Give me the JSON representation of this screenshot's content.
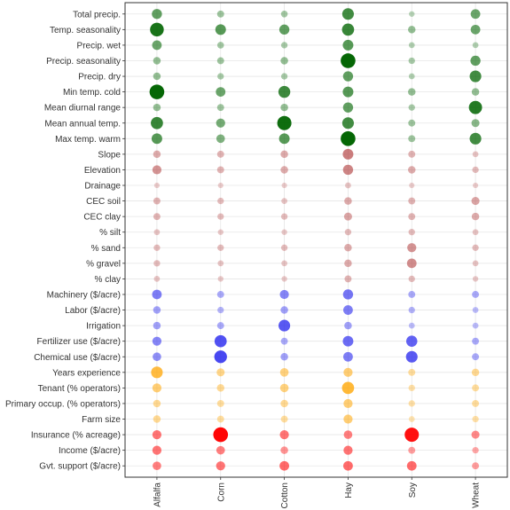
{
  "chart_data": {
    "type": "scatter",
    "title": "",
    "xlabel": "",
    "ylabel": "",
    "grid": true,
    "legend": "none",
    "x_categories": [
      "Alfalfa",
      "Corn",
      "Cotton",
      "Hay",
      "Soy",
      "Wheat"
    ],
    "groups": {
      "climate": {
        "color": "#006400"
      },
      "soil": {
        "color": "#b03a3a"
      },
      "cost": {
        "color": "#2020ee"
      },
      "farmer": {
        "color": "#ffa500"
      },
      "policy": {
        "color": "#ff0000"
      }
    },
    "variables": [
      {
        "label": "Total precip.",
        "group": "climate",
        "values": [
          0.55,
          0.25,
          0.22,
          0.7,
          0.12,
          0.5
        ]
      },
      {
        "label": "Temp. seasonality",
        "group": "climate",
        "values": [
          0.9,
          0.6,
          0.55,
          0.75,
          0.3,
          0.5
        ]
      },
      {
        "label": "Precip. wet",
        "group": "climate",
        "values": [
          0.5,
          0.22,
          0.2,
          0.6,
          0.15,
          0.15
        ]
      },
      {
        "label": "Precip. seasonality",
        "group": "climate",
        "values": [
          0.3,
          0.25,
          0.3,
          1.0,
          0.2,
          0.55
        ]
      },
      {
        "label": "Precip. dry",
        "group": "climate",
        "values": [
          0.3,
          0.2,
          0.2,
          0.55,
          0.15,
          0.7
        ]
      },
      {
        "label": "Min temp. cold",
        "group": "climate",
        "values": [
          1.0,
          0.5,
          0.72,
          0.6,
          0.3,
          0.3
        ]
      },
      {
        "label": "Mean diurnal range",
        "group": "climate",
        "values": [
          0.3,
          0.25,
          0.3,
          0.55,
          0.2,
          0.85
        ]
      },
      {
        "label": "Mean annual temp.",
        "group": "climate",
        "values": [
          0.75,
          0.45,
          0.95,
          0.7,
          0.25,
          0.35
        ]
      },
      {
        "label": "Max temp. warm",
        "group": "climate",
        "values": [
          0.6,
          0.4,
          0.6,
          1.0,
          0.25,
          0.7
        ]
      },
      {
        "label": "Slope",
        "group": "soil",
        "values": [
          0.3,
          0.25,
          0.3,
          0.6,
          0.25,
          0.15
        ]
      },
      {
        "label": "Elevation",
        "group": "soil",
        "values": [
          0.45,
          0.25,
          0.3,
          0.55,
          0.3,
          0.2
        ]
      },
      {
        "label": "Drainage",
        "group": "soil",
        "values": [
          0.1,
          0.1,
          0.1,
          0.15,
          0.1,
          0.1
        ]
      },
      {
        "label": "CEC soil",
        "group": "soil",
        "values": [
          0.25,
          0.2,
          0.15,
          0.3,
          0.25,
          0.35
        ]
      },
      {
        "label": "CEC clay",
        "group": "soil",
        "values": [
          0.25,
          0.2,
          0.2,
          0.35,
          0.25,
          0.3
        ]
      },
      {
        "label": "% silt",
        "group": "soil",
        "values": [
          0.15,
          0.12,
          0.12,
          0.2,
          0.2,
          0.15
        ]
      },
      {
        "label": "% sand",
        "group": "soil",
        "values": [
          0.2,
          0.2,
          0.2,
          0.3,
          0.45,
          0.2
        ]
      },
      {
        "label": "% gravel",
        "group": "soil",
        "values": [
          0.2,
          0.15,
          0.15,
          0.3,
          0.5,
          0.15
        ]
      },
      {
        "label": "% clay",
        "group": "soil",
        "values": [
          0.15,
          0.12,
          0.12,
          0.25,
          0.2,
          0.12
        ]
      },
      {
        "label": "Machinery ($/acre)",
        "group": "cost",
        "values": [
          0.5,
          0.25,
          0.45,
          0.55,
          0.25,
          0.25
        ]
      },
      {
        "label": "Labor ($/acre)",
        "group": "cost",
        "values": [
          0.3,
          0.2,
          0.3,
          0.5,
          0.2,
          0.15
        ]
      },
      {
        "label": "Irrigation",
        "group": "cost",
        "values": [
          0.3,
          0.25,
          0.7,
          0.3,
          0.15,
          0.15
        ]
      },
      {
        "label": "Fertilizer use ($/acre)",
        "group": "cost",
        "values": [
          0.45,
          0.75,
          0.25,
          0.6,
          0.65,
          0.25
        ]
      },
      {
        "label": "Chemical use ($/acre)",
        "group": "cost",
        "values": [
          0.4,
          0.8,
          0.3,
          0.5,
          0.7,
          0.25
        ]
      },
      {
        "label": "Years experience",
        "group": "farmer",
        "values": [
          0.7,
          0.35,
          0.4,
          0.45,
          0.25,
          0.3
        ]
      },
      {
        "label": "Tenant (% operators)",
        "group": "farmer",
        "values": [
          0.45,
          0.3,
          0.4,
          0.75,
          0.2,
          0.25
        ]
      },
      {
        "label": "Primary occup. (% operators)",
        "group": "farmer",
        "values": [
          0.3,
          0.25,
          0.3,
          0.45,
          0.2,
          0.25
        ]
      },
      {
        "label": "Farm size",
        "group": "farmer",
        "values": [
          0.3,
          0.25,
          0.25,
          0.45,
          0.15,
          0.2
        ]
      },
      {
        "label": "Insurance (% acreage)",
        "group": "policy",
        "values": [
          0.45,
          1.0,
          0.45,
          0.4,
          0.95,
          0.35
        ]
      },
      {
        "label": "Income ($/acre)",
        "group": "policy",
        "values": [
          0.45,
          0.4,
          0.3,
          0.45,
          0.25,
          0.2
        ]
      },
      {
        "label": "Gvt. support ($/acre)",
        "group": "policy",
        "values": [
          0.4,
          0.45,
          0.5,
          0.5,
          0.5,
          0.25
        ]
      }
    ]
  }
}
